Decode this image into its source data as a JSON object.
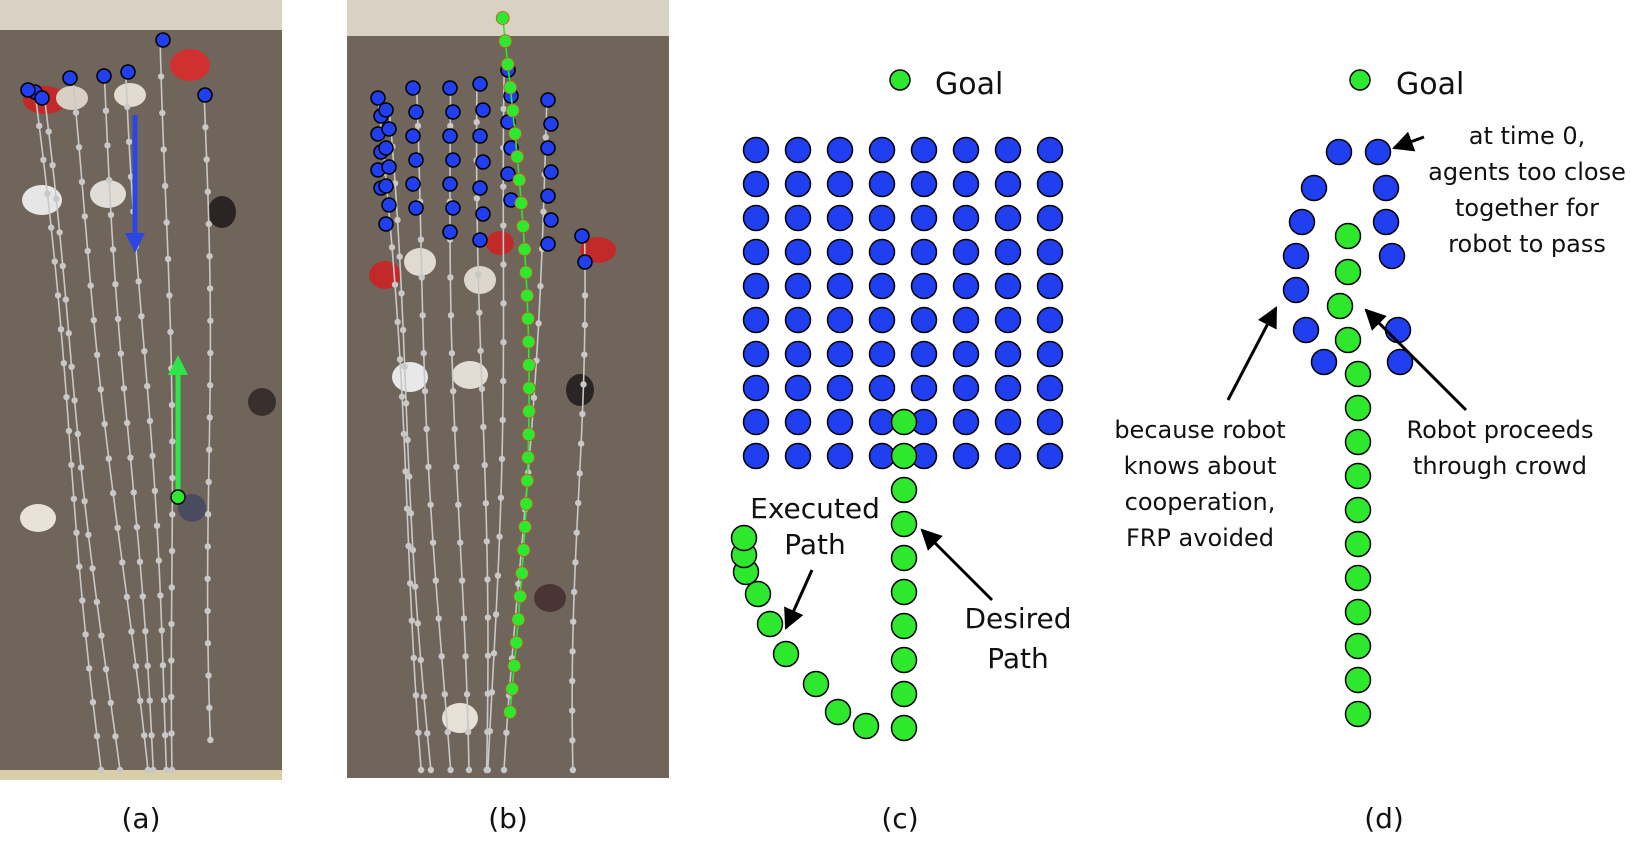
{
  "panels": {
    "a": {
      "caption": "(a)"
    },
    "b": {
      "caption": "(b)"
    },
    "c": {
      "caption": "(c)",
      "goal_label": "Goal",
      "executed_label_1": "Executed",
      "executed_label_2": "Path",
      "desired_label_1": "Desired",
      "desired_label_2": "Path"
    },
    "d": {
      "caption": "(d)",
      "goal_label": "Goal",
      "note_time0": [
        "at time 0,",
        "agents too close",
        "together for",
        "robot to pass"
      ],
      "note_proceeds": [
        "Robot proceeds",
        "through crowd"
      ],
      "note_cooperation": [
        "because robot",
        "knows about",
        "cooperation,",
        "FRP avoided"
      ]
    }
  },
  "colors": {
    "crowd_agent": "#1f3ff0",
    "robot": "#2ee82e",
    "trajectory": "#c8c8c8",
    "floor": "#6f655a",
    "arrow_down": "#2c46e6",
    "arrow_up": "#2ee64a",
    "agent_outline": "#000000"
  }
}
